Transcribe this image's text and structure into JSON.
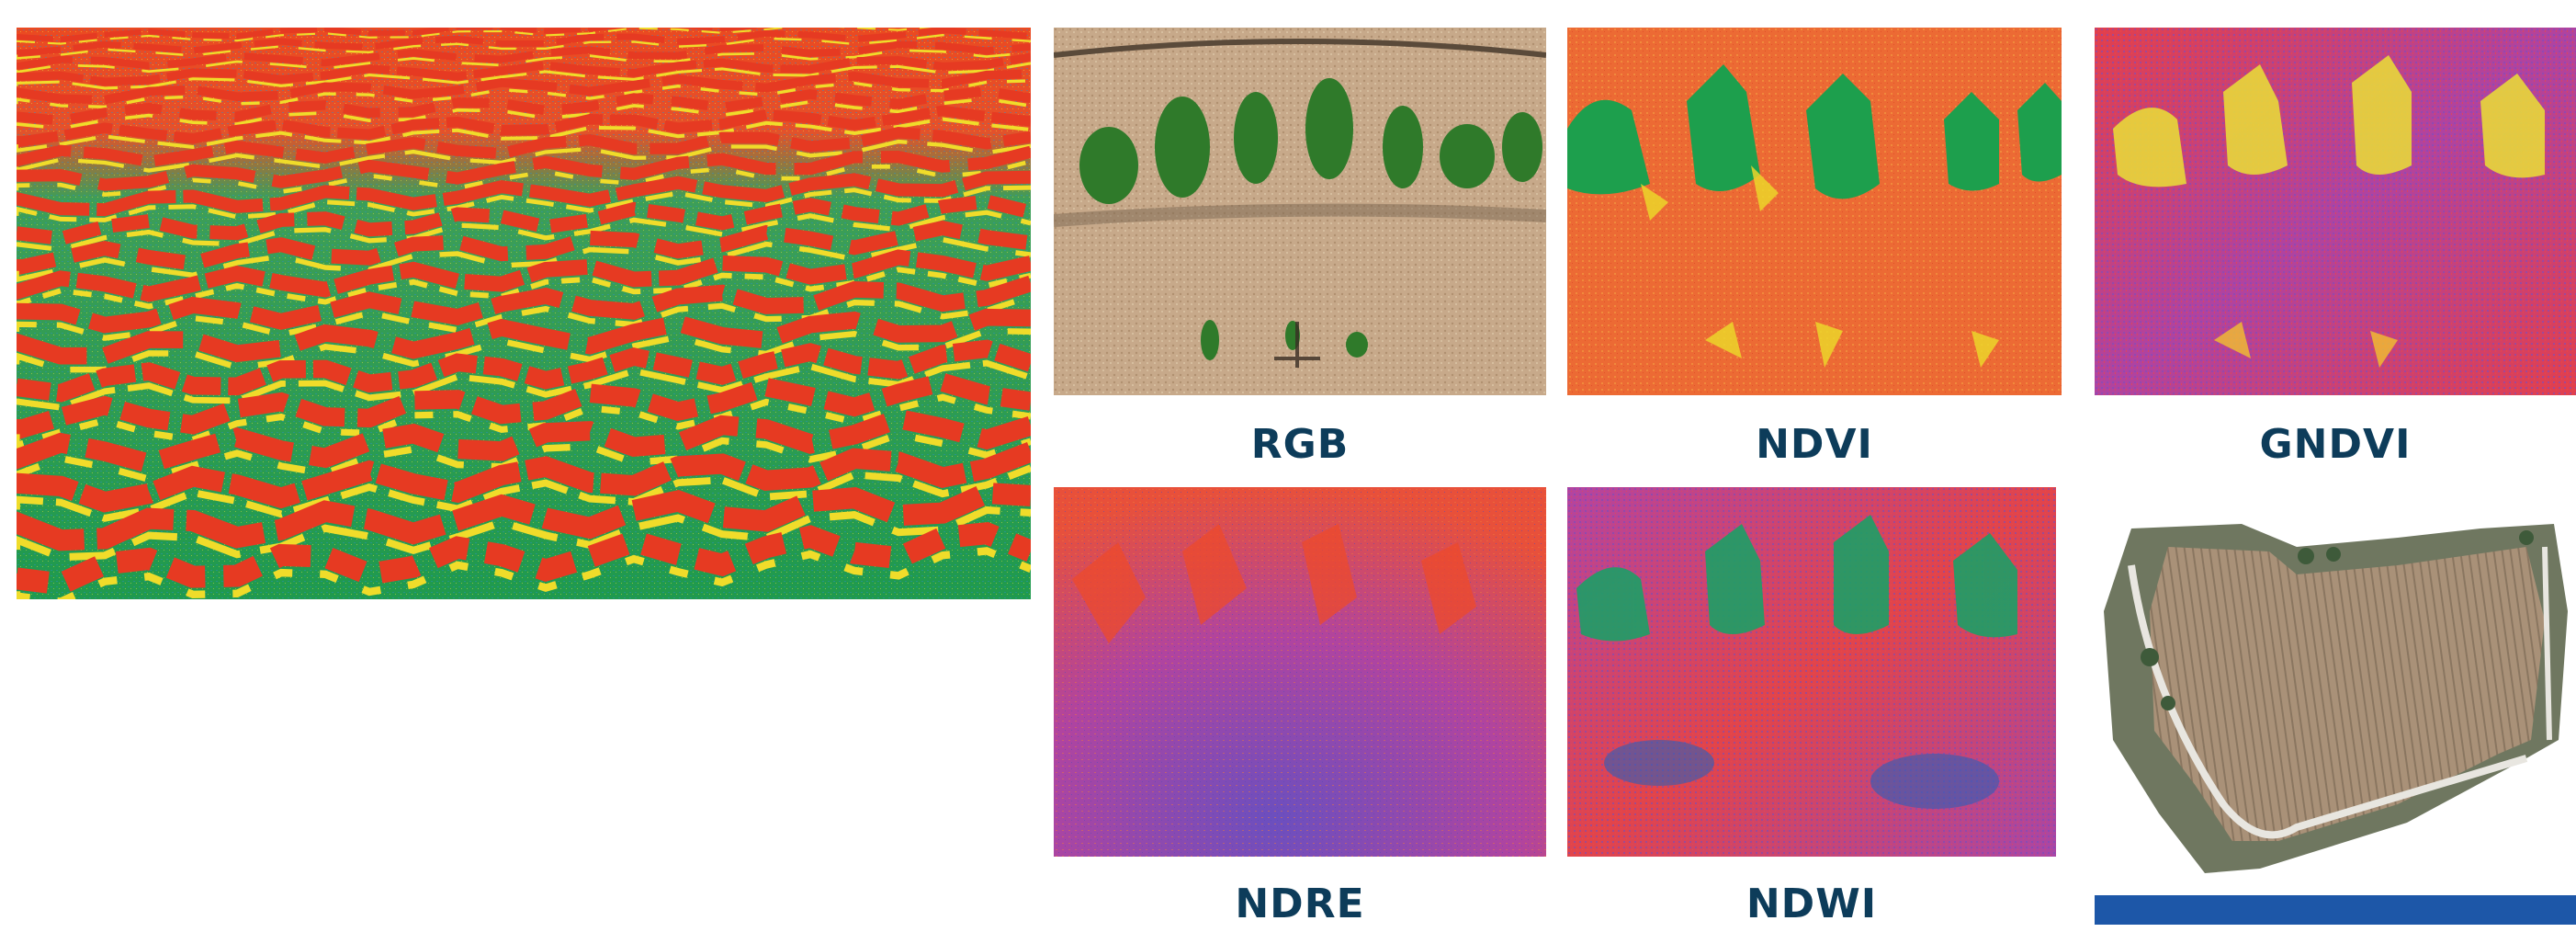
{
  "captions": {
    "rgb": "RGB",
    "ndvi": "NDVI",
    "gndvi": "GNDVI",
    "ndre": "NDRE",
    "ndwi": "NDWI"
  },
  "colors": {
    "caption_text": "#0d3c5a",
    "accent_bar": "#1d57a8",
    "page_background": "#ffffff"
  },
  "images": {
    "large_heatmap": "vineyard-oblique-false-color",
    "rgb": "vineyard-row-rgb-photo",
    "ndvi": "vineyard-row-ndvi-map",
    "gndvi": "vineyard-row-gndvi-map",
    "ndre": "vineyard-row-ndre-map",
    "ndwi": "vineyard-row-ndwi-map",
    "orthomosaic": "vineyard-field-orthomosaic"
  }
}
